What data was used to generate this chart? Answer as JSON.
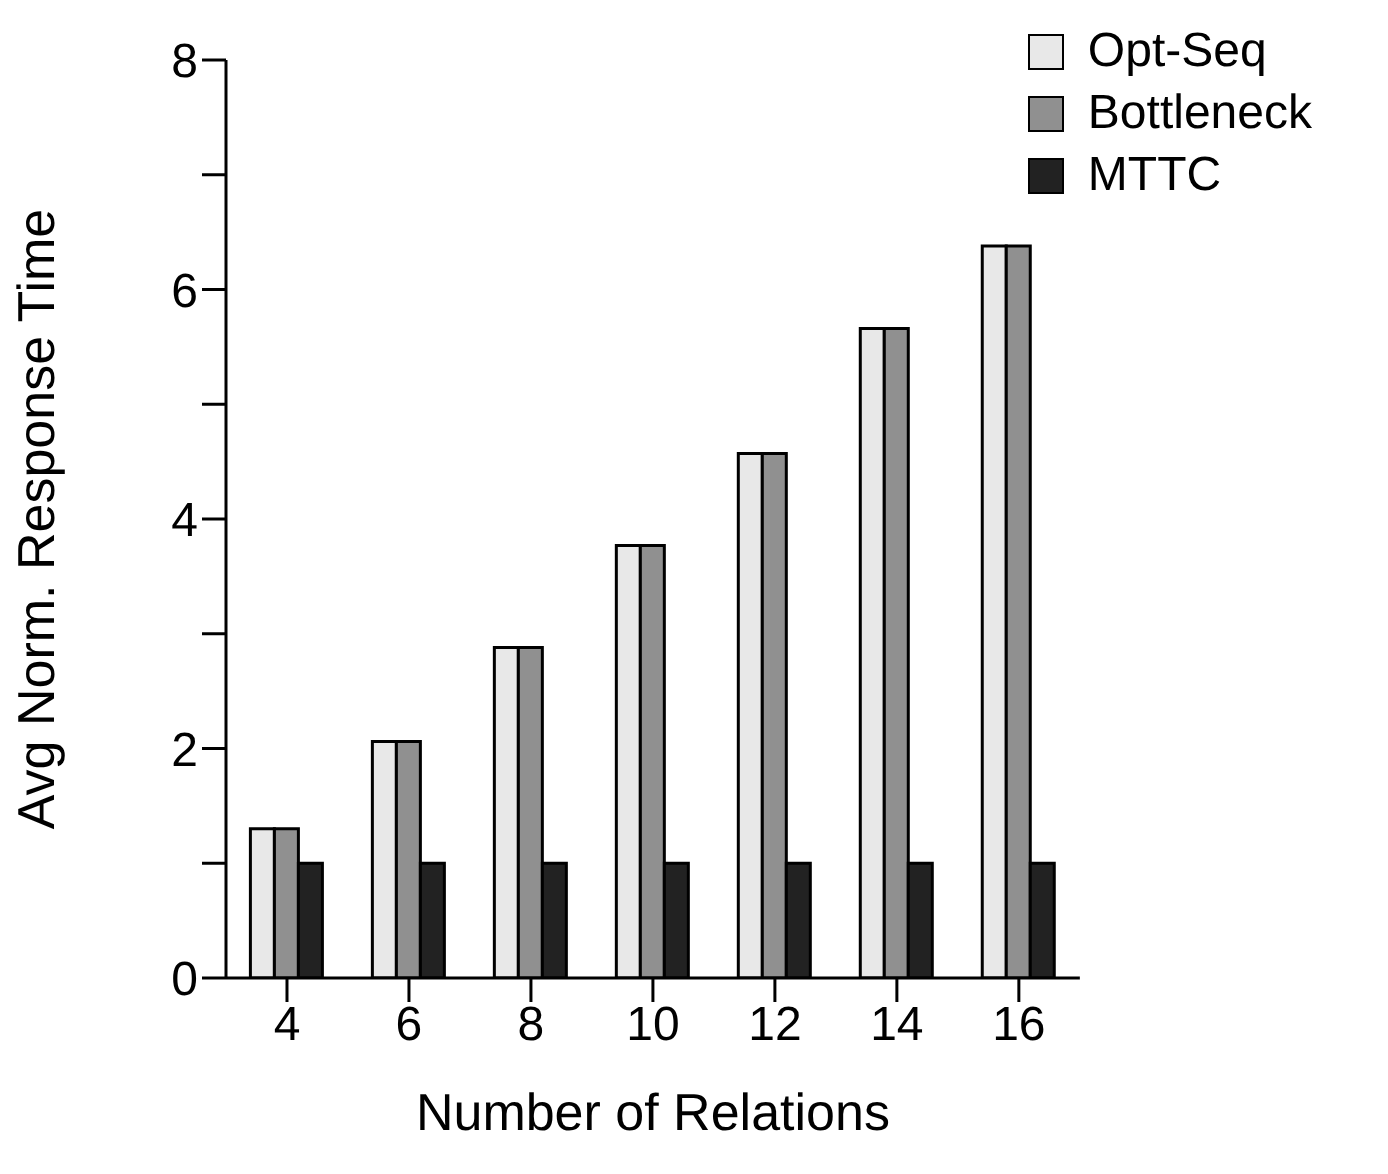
{
  "chart_data": {
    "type": "bar",
    "xlabel": "Number of Relations",
    "ylabel": "Avg Norm. Response Time",
    "categories": [
      "4",
      "6",
      "8",
      "10",
      "12",
      "14",
      "16"
    ],
    "series": [
      {
        "name": "Opt-Seq",
        "color": "#e8e8e8",
        "values": [
          1.3,
          2.06,
          2.88,
          3.77,
          4.57,
          5.66,
          6.38
        ]
      },
      {
        "name": "Bottleneck",
        "color": "#909090",
        "values": [
          1.3,
          2.06,
          2.88,
          3.77,
          4.57,
          5.66,
          6.38
        ]
      },
      {
        "name": "MTTC",
        "color": "#222222",
        "values": [
          1.0,
          1.0,
          1.0,
          1.0,
          1.0,
          1.0,
          1.0
        ]
      }
    ],
    "ylim": [
      0,
      8
    ],
    "yticks": [
      0,
      {
        "value": 1,
        "label": null
      },
      2,
      {
        "value": 3,
        "label": null
      },
      4,
      {
        "value": 5,
        "label": null
      },
      6,
      {
        "value": 7,
        "label": null
      },
      8
    ],
    "grid": false,
    "legend": "top right"
  }
}
